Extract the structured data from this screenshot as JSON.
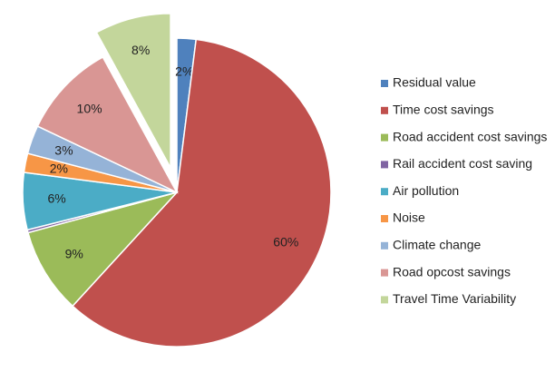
{
  "chart_data": {
    "type": "pie",
    "categories": [
      "Residual value",
      "Time cost savings",
      "Road accident cost savings",
      "Rail accident cost saving",
      "Air pollution",
      "Noise",
      "Climate change",
      "Road opcost savings",
      "Travel Time Variability"
    ],
    "values": [
      2,
      60,
      9,
      0.3,
      6,
      2,
      3,
      10,
      8
    ],
    "value_labels": [
      "2%",
      "60%",
      "9%",
      null,
      "6%",
      "2%",
      "3%",
      "10%",
      "8%"
    ],
    "colors": [
      "#4f81bd",
      "#c0504d",
      "#9bbb59",
      "#8064a2",
      "#4bacc6",
      "#f79646",
      "#95b3d7",
      "#d99694",
      "#c3d69b"
    ],
    "exploded": [
      8
    ],
    "legend": "right"
  }
}
